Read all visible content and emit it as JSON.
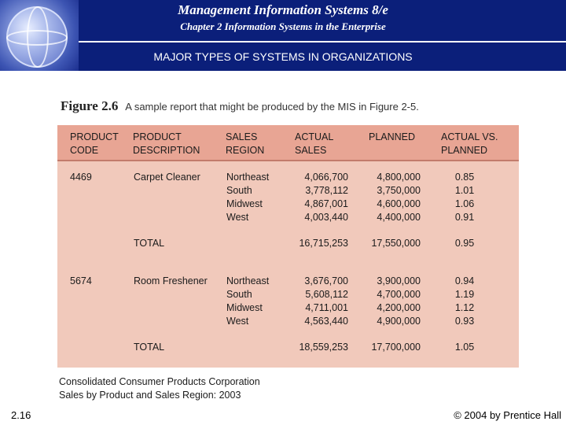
{
  "header": {
    "title": "Management Information Systems 8/e",
    "subtitle": "Chapter 2 Information Systems in the Enterprise",
    "section_title": "MAJOR TYPES OF SYSTEMS IN ORGANIZATIONS"
  },
  "figure": {
    "label": "Figure 2.6",
    "caption": "A sample report that might be produced by the MIS in Figure 2-5.",
    "headers": {
      "code": "PRODUCT\nCODE",
      "desc": "PRODUCT\nDESCRIPTION",
      "region": "SALES\nREGION",
      "actual": "ACTUAL\nSALES",
      "planned": "PLANNED",
      "ratio": "ACTUAL VS.\nPLANNED"
    },
    "groups": [
      {
        "code": "4469",
        "description": "Carpet Cleaner",
        "rows": [
          {
            "region": "Northeast",
            "actual": "4,066,700",
            "planned": "4,800,000",
            "ratio": "0.85"
          },
          {
            "region": "South",
            "actual": "3,778,112",
            "planned": "3,750,000",
            "ratio": "1.01"
          },
          {
            "region": "Midwest",
            "actual": "4,867,001",
            "planned": "4,600,000",
            "ratio": "1.06"
          },
          {
            "region": "West",
            "actual": "4,003,440",
            "planned": "4,400,000",
            "ratio": "0.91"
          }
        ],
        "total": {
          "label": "TOTAL",
          "actual": "16,715,253",
          "planned": "17,550,000",
          "ratio": "0.95"
        }
      },
      {
        "code": "5674",
        "description": "Room Freshener",
        "rows": [
          {
            "region": "Northeast",
            "actual": "3,676,700",
            "planned": "3,900,000",
            "ratio": "0.94"
          },
          {
            "region": "South",
            "actual": "5,608,112",
            "planned": "4,700,000",
            "ratio": "1.19"
          },
          {
            "region": "Midwest",
            "actual": "4,711,001",
            "planned": "4,200,000",
            "ratio": "1.12"
          },
          {
            "region": "West",
            "actual": "4,563,440",
            "planned": "4,900,000",
            "ratio": "0.93"
          }
        ],
        "total": {
          "label": "TOTAL",
          "actual": "18,559,253",
          "planned": "17,700,000",
          "ratio": "1.05"
        }
      }
    ],
    "footer_line1": "Consolidated Consumer Products Corporation",
    "footer_line2": "Sales by Product and Sales Region: 2003"
  },
  "slide_number": "2.16",
  "copyright": "© 2004 by Prentice Hall",
  "colors": {
    "header_bg": "#0b1f7a",
    "table_bg": "#f1c9bb",
    "table_header_bg": "#e8a594"
  }
}
